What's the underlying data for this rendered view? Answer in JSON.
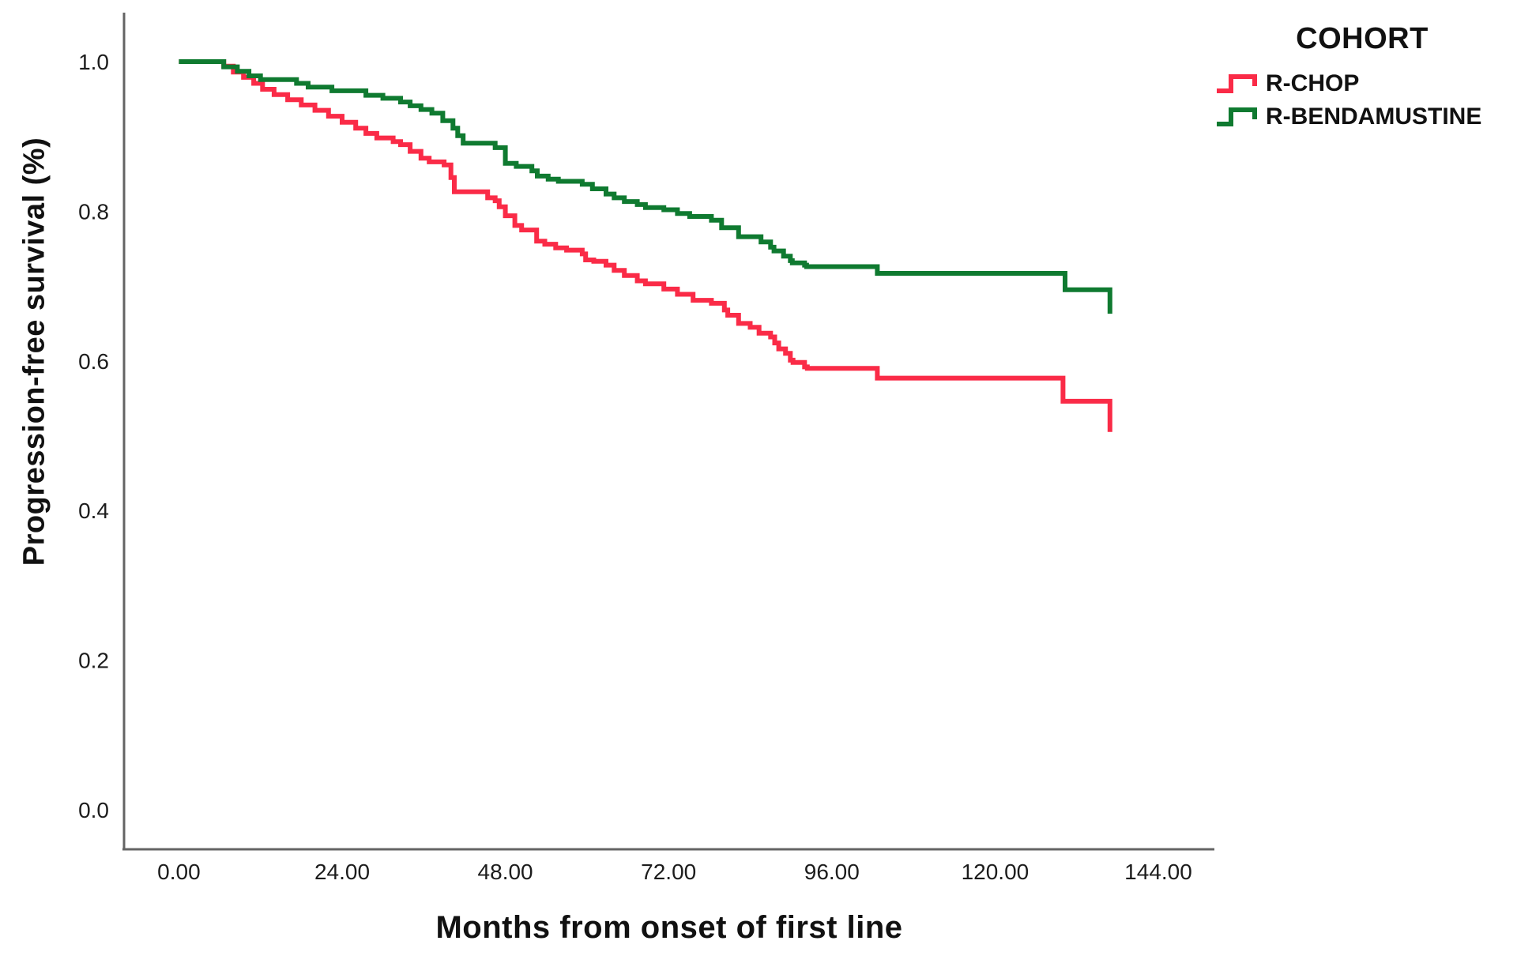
{
  "chart_data": {
    "type": "line",
    "style": "kaplan-meier-step",
    "title": "",
    "xlabel": "Months from onset of first line",
    "ylabel": "Progression-free survival (%)",
    "x_ticks": [
      0,
      24,
      48,
      72,
      96,
      120,
      144
    ],
    "x_tick_labels": [
      "0.00",
      "24.00",
      "48.00",
      "72.00",
      "96.00",
      "120.00",
      "144.00"
    ],
    "y_ticks": [
      0.0,
      0.2,
      0.4,
      0.6,
      0.8,
      1.0
    ],
    "y_tick_labels": [
      "0.0",
      "0.2",
      "0.4",
      "0.6",
      "0.8",
      "1.0"
    ],
    "xlim": [
      0,
      152
    ],
    "ylim": [
      0,
      1.06
    ],
    "grid": false,
    "axis_color": "#646464",
    "text_color": "#1c1c1c",
    "legend": {
      "title": "COHORT",
      "position": "top-right-outside",
      "entries": [
        {
          "label": "R-CHOP",
          "color": "#FA2B47"
        },
        {
          "label": "R-BENDAMUSTINE",
          "color": "#0F7A30"
        }
      ]
    },
    "points_format": "[months, survival_fraction] — survival holds at value until next listed time (step function); final pair is terminal drop",
    "series": [
      {
        "name": "R-CHOP",
        "color": "#FA2B47",
        "steps": [
          [
            0,
            1.0
          ],
          [
            6.6,
            0.994
          ],
          [
            8.0,
            0.986
          ],
          [
            9.5,
            0.979
          ],
          [
            11.0,
            0.971
          ],
          [
            12.3,
            0.963
          ],
          [
            14.0,
            0.956
          ],
          [
            16.0,
            0.949
          ],
          [
            18.0,
            0.942
          ],
          [
            20.0,
            0.935
          ],
          [
            22.0,
            0.927
          ],
          [
            24.0,
            0.919
          ],
          [
            26.0,
            0.911
          ],
          [
            27.5,
            0.904
          ],
          [
            29.1,
            0.898
          ],
          [
            31.5,
            0.893
          ],
          [
            32.6,
            0.889
          ],
          [
            34.0,
            0.88
          ],
          [
            35.6,
            0.871
          ],
          [
            36.8,
            0.866
          ],
          [
            39.0,
            0.862
          ],
          [
            40.0,
            0.845
          ],
          [
            40.5,
            0.826
          ],
          [
            45.4,
            0.818
          ],
          [
            46.5,
            0.814
          ],
          [
            47.1,
            0.806
          ],
          [
            48.0,
            0.794
          ],
          [
            49.4,
            0.781
          ],
          [
            50.4,
            0.775
          ],
          [
            52.6,
            0.76
          ],
          [
            53.8,
            0.756
          ],
          [
            55.4,
            0.751
          ],
          [
            57.0,
            0.748
          ],
          [
            59.3,
            0.743
          ],
          [
            59.8,
            0.735
          ],
          [
            61.0,
            0.733
          ],
          [
            62.8,
            0.728
          ],
          [
            64.0,
            0.721
          ],
          [
            65.5,
            0.714
          ],
          [
            67.4,
            0.707
          ],
          [
            68.6,
            0.703
          ],
          [
            71.3,
            0.696
          ],
          [
            73.3,
            0.689
          ],
          [
            75.6,
            0.681
          ],
          [
            78.3,
            0.677
          ],
          [
            80.2,
            0.668
          ],
          [
            80.7,
            0.661
          ],
          [
            82.3,
            0.65
          ],
          [
            84.0,
            0.645
          ],
          [
            85.3,
            0.637
          ],
          [
            87.0,
            0.632
          ],
          [
            87.6,
            0.624
          ],
          [
            88.2,
            0.616
          ],
          [
            89.2,
            0.61
          ],
          [
            89.9,
            0.601
          ],
          [
            90.3,
            0.598
          ],
          [
            92.0,
            0.592
          ],
          [
            92.4,
            0.59
          ],
          [
            102.7,
            0.577
          ],
          [
            130.0,
            0.546
          ],
          [
            136.9,
            0.505
          ]
        ]
      },
      {
        "name": "R-BENDAMUSTINE",
        "color": "#0F7A30",
        "steps": [
          [
            0,
            1.0
          ],
          [
            6.6,
            0.993
          ],
          [
            8.6,
            0.987
          ],
          [
            10.3,
            0.981
          ],
          [
            12.0,
            0.976
          ],
          [
            17.3,
            0.971
          ],
          [
            19.0,
            0.966
          ],
          [
            22.5,
            0.961
          ],
          [
            27.5,
            0.955
          ],
          [
            30.0,
            0.951
          ],
          [
            32.6,
            0.946
          ],
          [
            34.0,
            0.941
          ],
          [
            35.6,
            0.936
          ],
          [
            37.2,
            0.931
          ],
          [
            38.8,
            0.921
          ],
          [
            40.3,
            0.911
          ],
          [
            41.0,
            0.901
          ],
          [
            41.8,
            0.891
          ],
          [
            46.5,
            0.885
          ],
          [
            48.0,
            0.864
          ],
          [
            49.6,
            0.86
          ],
          [
            51.9,
            0.854
          ],
          [
            52.7,
            0.847
          ],
          [
            54.3,
            0.843
          ],
          [
            55.8,
            0.84
          ],
          [
            59.3,
            0.836
          ],
          [
            60.8,
            0.83
          ],
          [
            62.8,
            0.823
          ],
          [
            64.0,
            0.818
          ],
          [
            65.5,
            0.813
          ],
          [
            67.4,
            0.809
          ],
          [
            68.6,
            0.805
          ],
          [
            71.3,
            0.802
          ],
          [
            73.3,
            0.797
          ],
          [
            75.1,
            0.793
          ],
          [
            78.3,
            0.788
          ],
          [
            79.8,
            0.778
          ],
          [
            82.3,
            0.766
          ],
          [
            85.6,
            0.759
          ],
          [
            87.0,
            0.752
          ],
          [
            87.5,
            0.747
          ],
          [
            88.9,
            0.74
          ],
          [
            89.9,
            0.734
          ],
          [
            90.2,
            0.731
          ],
          [
            92.0,
            0.728
          ],
          [
            92.3,
            0.726
          ],
          [
            102.7,
            0.717
          ],
          [
            130.3,
            0.695
          ],
          [
            136.9,
            0.663
          ]
        ]
      }
    ]
  }
}
